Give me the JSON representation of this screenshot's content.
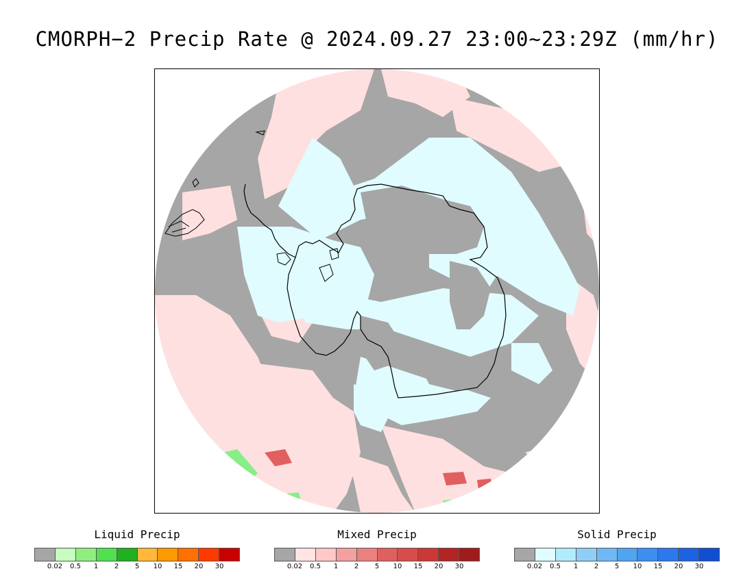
{
  "title": "CMORPH−2 Precip Rate @ 2024.09.27 23:00~23:29Z (mm/hr)",
  "map": {
    "projection": "south-polar-stereographic",
    "colors": {
      "frame": "#000000",
      "no_precip_gray": "#a6a6a6",
      "mixed_light": "#ffe0e0",
      "solid_light": "#e0fcff",
      "coastline": "#000000",
      "liquid_green": "#88ee88"
    },
    "icons": [
      "coastline-antarctica",
      "coastline-south-america"
    ]
  },
  "legends": [
    {
      "id": "liquid",
      "title": "Liquid Precip",
      "colors": [
        "#a6a6a6",
        "#c8fcc0",
        "#90ee80",
        "#50e050",
        "#20b020",
        "#ffb83a",
        "#ff9a00",
        "#ff7000",
        "#ff3a00",
        "#c80000"
      ],
      "ticks": [
        "0.02",
        "0.5",
        "1",
        "2",
        "5",
        "10",
        "15",
        "20",
        "30"
      ]
    },
    {
      "id": "mixed",
      "title": "Mixed Precip",
      "colors": [
        "#a6a6a6",
        "#ffe4e4",
        "#ffc8c8",
        "#f4a0a0",
        "#ea8080",
        "#e06060",
        "#d84c4c",
        "#cc3838",
        "#b42424",
        "#a01c1c"
      ],
      "ticks": [
        "0.02",
        "0.5",
        "1",
        "2",
        "5",
        "10",
        "15",
        "20",
        "30"
      ]
    },
    {
      "id": "solid",
      "title": "Solid Precip",
      "colors": [
        "#a6a6a6",
        "#e0fcff",
        "#b0ecfc",
        "#90cef8",
        "#70b8f4",
        "#50a4f0",
        "#3c8ef0",
        "#2c78ec",
        "#1c62e4",
        "#1050d0"
      ],
      "ticks": [
        "0.02",
        "0.5",
        "1",
        "2",
        "5",
        "10",
        "15",
        "20",
        "30"
      ]
    }
  ]
}
